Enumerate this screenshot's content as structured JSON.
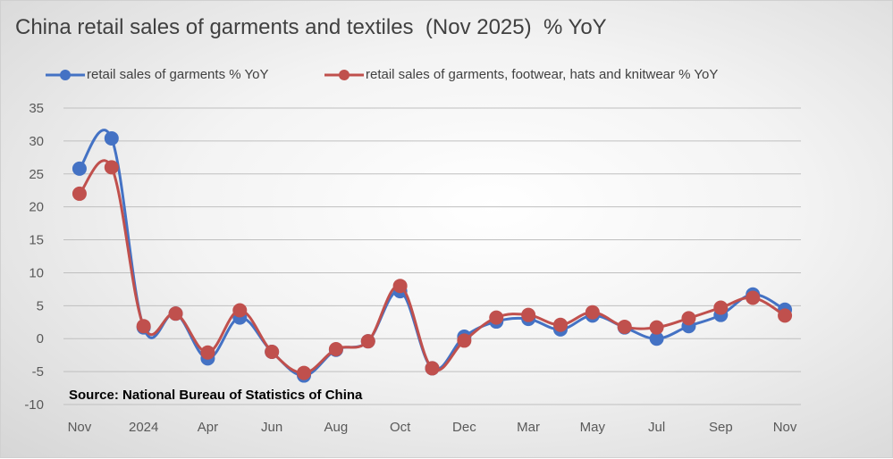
{
  "chart_data": {
    "type": "line",
    "title": "China retail sales of garments and textiles  (Nov 2025)  % YoY",
    "x_tick_labels": [
      "Nov",
      "2024",
      "Apr",
      "Jun",
      "Aug",
      "Oct",
      "Dec",
      "Mar",
      "May",
      "Jul",
      "Sep",
      "Nov"
    ],
    "x_tick_index": [
      0,
      2,
      4,
      6,
      8,
      10,
      12,
      14,
      16,
      18,
      20,
      22
    ],
    "y_ticks": [
      "35",
      "30",
      "25",
      "20",
      "15",
      "10",
      "5",
      "0",
      "-5",
      "-10"
    ],
    "ylim": [
      -10,
      35
    ],
    "grid": true,
    "legend_position": "top",
    "series": [
      {
        "name": "retail sales of garments % YoY",
        "color": "#4472C4",
        "values": [
          25.8,
          30.4,
          1.7,
          3.8,
          -3.0,
          3.2,
          -2.0,
          -5.6,
          -1.7,
          -0.4,
          7.2,
          -4.5,
          0.3,
          2.6,
          3.0,
          1.4,
          3.5,
          1.7,
          0.0,
          1.9,
          3.6,
          6.7,
          4.4
        ]
      },
      {
        "name": "retail sales of garments, footwear, hats and knitwear % YoY",
        "color": "#C0504D",
        "values": [
          22.0,
          26.0,
          1.9,
          3.8,
          -2.1,
          4.3,
          -2.0,
          -5.2,
          -1.6,
          -0.4,
          8.0,
          -4.5,
          -0.3,
          3.2,
          3.6,
          2.1,
          4.0,
          1.8,
          1.7,
          3.1,
          4.7,
          6.2,
          3.5
        ]
      }
    ]
  },
  "source": "Source: National Bureau of Statistics of China"
}
